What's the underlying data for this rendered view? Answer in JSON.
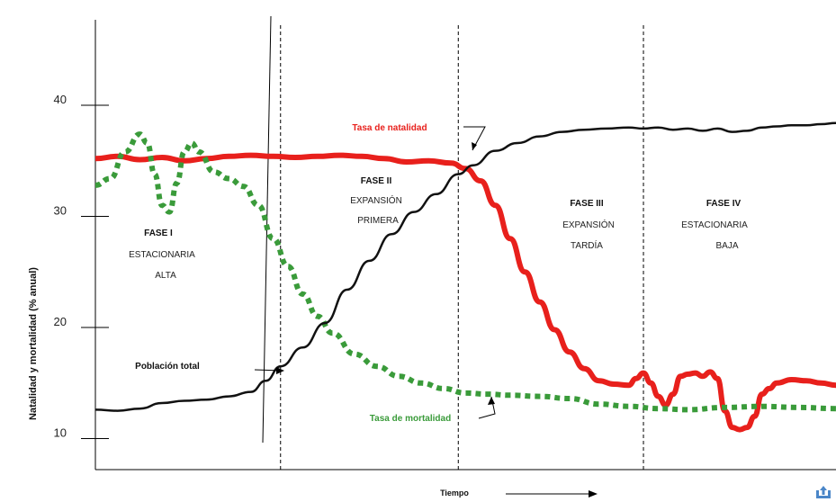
{
  "chart_data": {
    "type": "line",
    "ylabel": "Natalidad y mortalidad (% anual)",
    "xlabel": "Tiempo",
    "yticks": [
      10,
      20,
      30,
      40
    ],
    "ylim": [
      8,
      45
    ],
    "xlim": [
      0,
      100
    ],
    "grid": false,
    "phases": [
      {
        "title": "FASE I",
        "lines": [
          "ESTACIONARIA",
          "ALTA"
        ]
      },
      {
        "title": "FASE II",
        "lines": [
          "EXPANSIÓN",
          "PRIMERA"
        ]
      },
      {
        "title": "FASE III",
        "lines": [
          "EXPANSIÓN",
          "TARDÍA"
        ]
      },
      {
        "title": "FASE IV",
        "lines": [
          "ESTACIONARIA",
          "BAJA"
        ]
      }
    ],
    "phase_boundaries": [
      25,
      49,
      74
    ],
    "series": [
      {
        "name": "Tasa de natalidad",
        "color": "#e8201c",
        "style": "solid",
        "x": [
          0,
          3,
          6,
          9,
          12,
          15,
          18,
          21,
          24,
          27,
          30,
          33,
          36,
          39,
          42,
          45,
          48,
          50,
          52,
          54,
          56,
          58,
          60,
          62,
          64,
          66,
          68,
          70,
          72,
          73,
          74,
          75,
          76,
          77,
          78,
          79,
          80,
          81,
          82,
          83,
          84,
          85,
          86,
          87,
          88,
          89,
          90,
          91,
          92,
          94,
          96,
          98,
          100
        ],
        "y": [
          35.2,
          35.4,
          35.1,
          35.3,
          35.0,
          35.2,
          35.4,
          35.5,
          35.4,
          35.3,
          35.4,
          35.5,
          35.4,
          35.2,
          34.9,
          35.0,
          34.8,
          34.3,
          33.2,
          31.0,
          28.0,
          25.0,
          22.3,
          19.8,
          17.8,
          16.3,
          15.2,
          14.9,
          14.8,
          15.4,
          15.9,
          15.0,
          13.8,
          13.0,
          14.0,
          15.6,
          15.8,
          15.9,
          15.6,
          16.0,
          15.4,
          12.5,
          11.0,
          10.8,
          11.0,
          12.0,
          14.0,
          14.5,
          15.0,
          15.3,
          15.2,
          15.0,
          14.8
        ]
      },
      {
        "name": "Tasa de mortalidad",
        "color": "#3a9b3a",
        "style": "dotted",
        "x": [
          0,
          2,
          4,
          6,
          7,
          8,
          9,
          10,
          11,
          12,
          13,
          14,
          16,
          18,
          20,
          22,
          24,
          26,
          28,
          30,
          32,
          35,
          38,
          41,
          44,
          47,
          50,
          53,
          56,
          60,
          64,
          68,
          72,
          76,
          80,
          85,
          90,
          95,
          100
        ],
        "y": [
          32.8,
          33.4,
          35.8,
          37.4,
          36.6,
          33.8,
          31.0,
          30.4,
          33.0,
          35.8,
          36.6,
          35.8,
          34.0,
          33.4,
          32.7,
          31.0,
          28.0,
          25.5,
          23.0,
          21.0,
          19.5,
          17.6,
          16.5,
          15.6,
          15.0,
          14.5,
          14.1,
          14.0,
          13.9,
          13.8,
          13.6,
          13.1,
          12.9,
          12.7,
          12.6,
          12.8,
          12.9,
          12.8,
          12.7
        ]
      },
      {
        "name": "Población total",
        "color": "#111111",
        "style": "solid",
        "x": [
          0,
          3,
          6,
          9,
          12,
          15,
          18,
          21,
          23,
          25,
          28,
          31,
          34,
          37,
          40,
          43,
          46,
          49,
          51,
          54,
          57,
          60,
          63,
          66,
          69,
          72,
          74,
          76,
          78,
          80,
          82,
          84,
          86,
          88,
          90,
          92,
          94,
          96,
          98,
          100
        ],
        "y": [
          12.6,
          12.5,
          12.7,
          13.2,
          13.4,
          13.5,
          13.8,
          14.2,
          15.2,
          16.5,
          18.2,
          20.4,
          23.4,
          26.0,
          28.4,
          30.4,
          32.0,
          33.8,
          34.6,
          35.9,
          36.6,
          37.2,
          37.6,
          37.8,
          37.9,
          38.0,
          37.9,
          38.0,
          37.8,
          37.9,
          37.7,
          37.9,
          37.6,
          37.7,
          38.0,
          38.1,
          38.2,
          38.2,
          38.3,
          38.4
        ]
      }
    ],
    "annotations": {
      "natalidad": "Tasa de natalidad",
      "mortalidad": "Tasa de mortalidad",
      "poblacion": "Población total"
    },
    "legend": "none"
  },
  "colors": {
    "natalidad_label": "#e8201c",
    "mortalidad_label": "#3a9b3a",
    "axis": "#000000",
    "upload_icon": "#4a86c8"
  },
  "icons": {
    "corner": "upload-icon"
  }
}
